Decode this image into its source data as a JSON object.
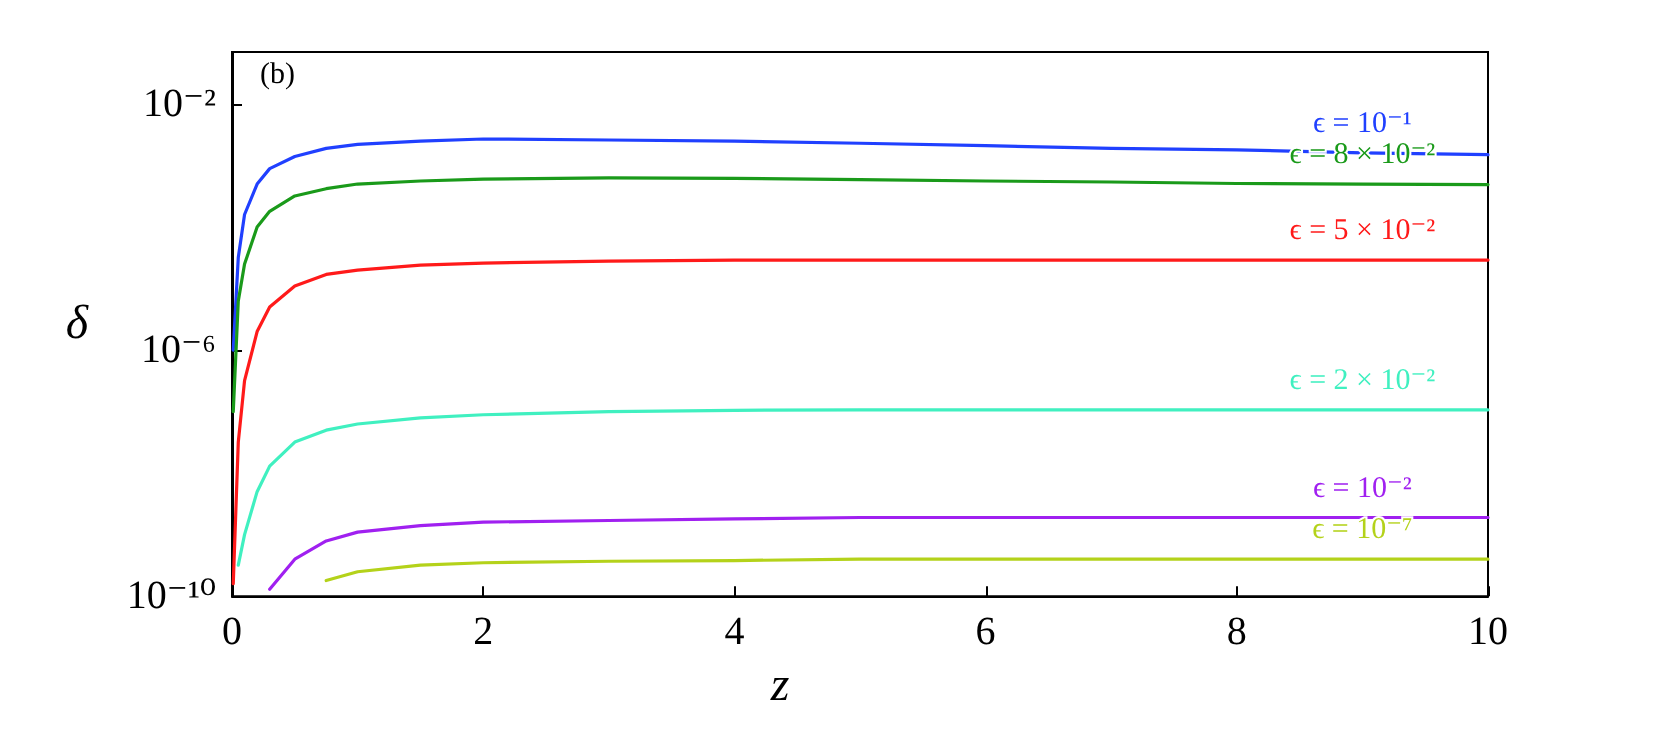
{
  "chart_data": {
    "type": "line",
    "xlabel": "z",
    "ylabel": "δ",
    "annotations": [
      "(b)"
    ],
    "log": "y",
    "grid": false,
    "legend": false,
    "marker": "none",
    "line_style": "solid",
    "xlim": [
      0,
      10
    ],
    "xticks": [
      0,
      2,
      4,
      6,
      8,
      10
    ],
    "ylim": [
      1e-10,
      0.07
    ],
    "yticks": [
      {
        "value": 1e-10,
        "label": "10⁻¹⁰"
      },
      {
        "value": 1e-06,
        "label": "10⁻⁶"
      },
      {
        "value": 0.01,
        "label": "10⁻²"
      }
    ],
    "x": [
      0.01,
      0.05,
      0.1,
      0.2,
      0.3,
      0.5,
      0.75,
      1,
      1.5,
      2,
      3,
      4,
      5,
      6,
      7,
      8,
      9,
      10
    ],
    "series": [
      {
        "name": "ϵ = 10⁻¹",
        "color": "#2040ff",
        "values": [
          1e-06,
          3.2e-05,
          0.00016,
          0.0005,
          0.00089,
          0.0014,
          0.0019,
          0.0022,
          0.0025,
          0.0027,
          0.0026,
          0.0025,
          0.0023,
          0.0021,
          0.0019,
          0.0018,
          0.0016,
          0.0015
        ]
      },
      {
        "name": "ϵ = 8 × 10⁻²",
        "color": "#1a9a1a",
        "values": [
          1e-07,
          6.3e-06,
          2.5e-05,
          0.0001,
          0.00018,
          0.00032,
          0.00042,
          0.0005,
          0.00056,
          0.0006,
          0.00063,
          0.00062,
          0.00059,
          0.00056,
          0.00054,
          0.00051,
          0.0005,
          0.00049
        ]
      },
      {
        "name": "ϵ = 5 × 10⁻²",
        "color": "#ff1a1a",
        "values": [
          1.6e-10,
          3.2e-08,
          3.2e-07,
          2e-06,
          5e-06,
          1.1e-05,
          1.7e-05,
          2e-05,
          2.4e-05,
          2.6e-05,
          2.8e-05,
          2.9e-05,
          2.9e-05,
          2.9e-05,
          2.9e-05,
          2.9e-05,
          2.9e-05,
          2.9e-05
        ]
      },
      {
        "name": "ϵ = 2 × 10⁻²",
        "color": "#40f0c0",
        "values": [
          null,
          3.2e-10,
          1e-09,
          5e-09,
          1.3e-08,
          3.2e-08,
          5e-08,
          6.3e-08,
          7.9e-08,
          8.9e-08,
          1e-07,
          1.05e-07,
          1.07e-07,
          1.07e-07,
          1.07e-07,
          1.07e-07,
          1.07e-07,
          1.07e-07
        ]
      },
      {
        "name": "ϵ = 10⁻²",
        "color": "#a020f0",
        "values": [
          null,
          null,
          null,
          null,
          1.3e-10,
          4e-10,
          7.9e-10,
          1.1e-09,
          1.4e-09,
          1.6e-09,
          1.7e-09,
          1.8e-09,
          1.9e-09,
          1.9e-09,
          1.9e-09,
          1.9e-09,
          1.9e-09,
          1.9e-09
        ]
      },
      {
        "name": "ϵ = 10⁻⁷",
        "color": "#b4d21a",
        "values": [
          null,
          null,
          null,
          null,
          null,
          null,
          1.8e-10,
          2.5e-10,
          3.2e-10,
          3.5e-10,
          3.7e-10,
          3.8e-10,
          4e-10,
          4e-10,
          4e-10,
          4e-10,
          4e-10,
          4e-10
        ]
      }
    ]
  }
}
